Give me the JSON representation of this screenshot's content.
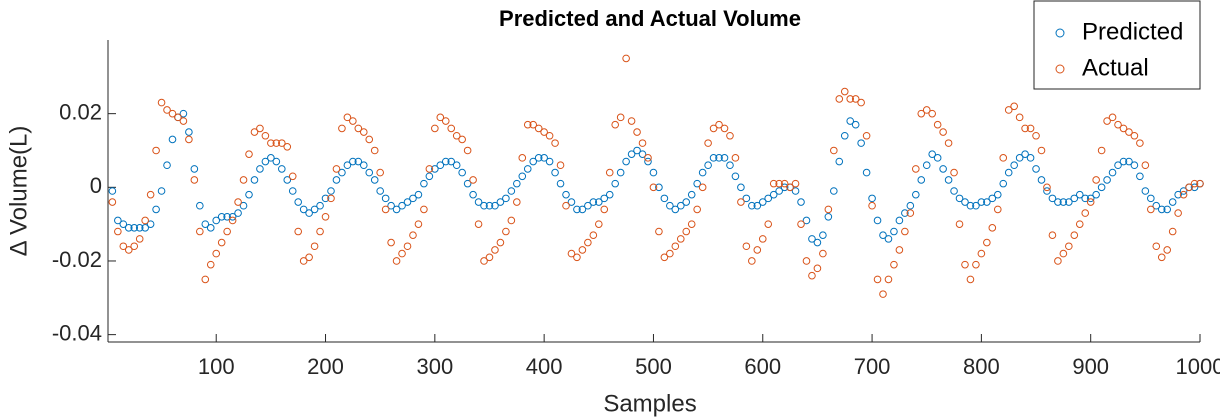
{
  "chart_data": {
    "type": "scatter",
    "title": "Predicted and Actual Volume",
    "xlabel": "Samples",
    "ylabel": "Δ Volume(L)",
    "x": [
      5,
      10,
      15,
      20,
      25,
      30,
      35,
      40,
      45,
      50,
      55,
      60,
      65,
      70,
      75,
      80,
      85,
      90,
      95,
      100,
      105,
      110,
      115,
      120,
      125,
      130,
      135,
      140,
      145,
      150,
      155,
      160,
      165,
      170,
      175,
      180,
      185,
      190,
      195,
      200,
      205,
      210,
      215,
      220,
      225,
      230,
      235,
      240,
      245,
      250,
      255,
      260,
      265,
      270,
      275,
      280,
      285,
      290,
      295,
      300,
      305,
      310,
      315,
      320,
      325,
      330,
      335,
      340,
      345,
      350,
      355,
      360,
      365,
      370,
      375,
      380,
      385,
      390,
      395,
      400,
      405,
      410,
      415,
      420,
      425,
      430,
      435,
      440,
      445,
      450,
      455,
      460,
      465,
      470,
      475,
      480,
      485,
      490,
      495,
      500,
      505,
      510,
      515,
      520,
      525,
      530,
      535,
      540,
      545,
      550,
      555,
      560,
      565,
      570,
      575,
      580,
      585,
      590,
      595,
      600,
      605,
      610,
      615,
      620,
      625,
      630,
      635,
      640,
      645,
      650,
      655,
      660,
      665,
      670,
      675,
      680,
      685,
      690,
      695,
      700,
      705,
      710,
      715,
      720,
      725,
      730,
      735,
      740,
      745,
      750,
      755,
      760,
      765,
      770,
      775,
      780,
      785,
      790,
      795,
      800,
      805,
      810,
      815,
      820,
      825,
      830,
      835,
      840,
      845,
      850,
      855,
      860,
      865,
      870,
      875,
      880,
      885,
      890,
      895,
      900,
      905,
      910,
      915,
      920,
      925,
      930,
      935,
      940,
      945,
      950,
      955,
      960,
      965,
      970,
      975,
      980,
      985,
      990,
      995,
      1000
    ],
    "series": [
      {
        "name": "Predicted",
        "color": "#0072BD",
        "values": [
          -0.001,
          -0.009,
          -0.01,
          -0.011,
          -0.011,
          -0.011,
          -0.011,
          -0.01,
          -0.006,
          -0.001,
          0.006,
          0.013,
          0.019,
          0.02,
          0.015,
          0.005,
          -0.005,
          -0.01,
          -0.011,
          -0.009,
          -0.008,
          -0.008,
          -0.008,
          -0.007,
          -0.005,
          -0.002,
          0.002,
          0.005,
          0.007,
          0.008,
          0.007,
          0.005,
          0.002,
          -0.001,
          -0.004,
          -0.006,
          -0.007,
          -0.006,
          -0.005,
          -0.003,
          -0.001,
          0.002,
          0.004,
          0.006,
          0.007,
          0.007,
          0.006,
          0.004,
          0.002,
          -0.001,
          -0.003,
          -0.005,
          -0.006,
          -0.005,
          -0.004,
          -0.003,
          -0.002,
          0.001,
          0.003,
          0.005,
          0.006,
          0.007,
          0.007,
          0.006,
          0.004,
          0.001,
          -0.002,
          -0.004,
          -0.005,
          -0.005,
          -0.005,
          -0.004,
          -0.003,
          -0.001,
          0.001,
          0.003,
          0.005,
          0.007,
          0.008,
          0.008,
          0.007,
          0.004,
          0.001,
          -0.002,
          -0.004,
          -0.006,
          -0.006,
          -0.005,
          -0.004,
          -0.004,
          -0.003,
          -0.002,
          0.001,
          0.004,
          0.007,
          0.009,
          0.01,
          0.009,
          0.007,
          0.004,
          0.0,
          -0.003,
          -0.005,
          -0.006,
          -0.005,
          -0.004,
          -0.002,
          0.001,
          0.004,
          0.006,
          0.008,
          0.008,
          0.008,
          0.006,
          0.003,
          0.0,
          -0.003,
          -0.005,
          -0.005,
          -0.004,
          -0.003,
          -0.002,
          -0.001,
          0.0,
          0.0,
          -0.001,
          -0.004,
          -0.009,
          -0.014,
          -0.015,
          -0.013,
          -0.008,
          -0.001,
          0.007,
          0.014,
          0.018,
          0.017,
          0.012,
          0.004,
          -0.003,
          -0.009,
          -0.013,
          -0.014,
          -0.012,
          -0.009,
          -0.007,
          -0.005,
          -0.002,
          0.002,
          0.006,
          0.009,
          0.008,
          0.005,
          0.002,
          -0.001,
          -0.003,
          -0.004,
          -0.005,
          -0.005,
          -0.004,
          -0.004,
          -0.003,
          -0.002,
          0.001,
          0.004,
          0.006,
          0.008,
          0.009,
          0.008,
          0.005,
          0.002,
          -0.001,
          -0.003,
          -0.004,
          -0.004,
          -0.004,
          -0.003,
          -0.002,
          -0.003,
          -0.003,
          -0.002,
          0.0,
          0.002,
          0.004,
          0.006,
          0.007,
          0.007,
          0.006,
          0.003,
          -0.001,
          -0.003,
          -0.005,
          -0.006,
          -0.006,
          -0.004,
          -0.002,
          -0.001,
          0.0,
          0.0,
          0.001
        ]
      },
      {
        "name": "Actual",
        "color": "#D95319",
        "values": [
          -0.004,
          -0.012,
          -0.016,
          -0.017,
          -0.016,
          -0.014,
          -0.009,
          -0.002,
          0.01,
          0.023,
          0.021,
          0.02,
          0.019,
          0.018,
          0.013,
          0.002,
          -0.012,
          -0.025,
          -0.021,
          -0.018,
          -0.015,
          -0.012,
          -0.009,
          -0.004,
          0.002,
          0.009,
          0.015,
          0.016,
          0.014,
          0.012,
          0.012,
          0.012,
          0.011,
          0.003,
          -0.012,
          -0.02,
          -0.019,
          -0.016,
          -0.012,
          -0.008,
          -0.003,
          0.005,
          0.016,
          0.019,
          0.018,
          0.016,
          0.015,
          0.013,
          0.01,
          0.004,
          -0.006,
          -0.015,
          -0.02,
          -0.018,
          -0.016,
          -0.013,
          -0.01,
          -0.006,
          0.005,
          0.016,
          0.019,
          0.018,
          0.016,
          0.014,
          0.013,
          0.01,
          0.002,
          -0.01,
          -0.02,
          -0.019,
          -0.017,
          -0.015,
          -0.012,
          -0.009,
          -0.004,
          0.008,
          0.017,
          0.017,
          0.016,
          0.015,
          0.014,
          0.012,
          0.006,
          -0.005,
          -0.018,
          -0.019,
          -0.017,
          -0.015,
          -0.013,
          -0.01,
          -0.006,
          0.004,
          0.017,
          0.019,
          0.035,
          0.018,
          0.015,
          0.012,
          0.008,
          0.0,
          -0.012,
          -0.019,
          -0.018,
          -0.016,
          -0.014,
          -0.012,
          -0.01,
          -0.006,
          0.0,
          0.012,
          0.016,
          0.017,
          0.016,
          0.014,
          0.008,
          -0.004,
          -0.016,
          -0.02,
          -0.017,
          -0.014,
          -0.01,
          0.001,
          0.001,
          0.001,
          0.0,
          0.001,
          -0.01,
          -0.02,
          -0.024,
          -0.022,
          -0.018,
          -0.006,
          0.01,
          0.024,
          0.026,
          0.024,
          0.024,
          0.023,
          0.014,
          -0.005,
          -0.025,
          -0.029,
          -0.025,
          -0.021,
          -0.017,
          -0.012,
          -0.007,
          0.005,
          0.02,
          0.021,
          0.02,
          0.017,
          0.015,
          0.012,
          0.004,
          -0.01,
          -0.021,
          -0.025,
          -0.021,
          -0.018,
          -0.015,
          -0.011,
          -0.006,
          0.008,
          0.021,
          0.022,
          0.019,
          0.016,
          0.016,
          0.014,
          0.01,
          0.0,
          -0.013,
          -0.02,
          -0.018,
          -0.016,
          -0.013,
          -0.01,
          -0.007,
          -0.004,
          0.002,
          0.01,
          0.018,
          0.019,
          0.017,
          0.016,
          0.015,
          0.014,
          0.012,
          0.006,
          -0.006,
          -0.016,
          -0.019,
          -0.017,
          -0.012,
          -0.007,
          -0.002,
          0.0,
          0.001,
          0.001
        ]
      }
    ],
    "xlim": [
      1,
      1000
    ],
    "ylim": [
      -0.042,
      0.04
    ],
    "xticks": [
      100,
      200,
      300,
      400,
      500,
      600,
      700,
      800,
      900,
      1000
    ],
    "yticks": [
      -0.04,
      -0.02,
      0,
      0.02
    ],
    "legend": "northeast"
  }
}
